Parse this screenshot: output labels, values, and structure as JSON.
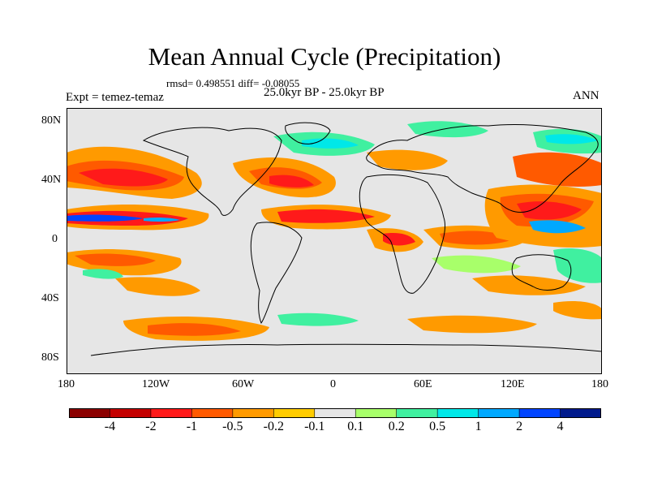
{
  "title": "Mean Annual Cycle (Precipitation)",
  "stats": "rmsd= 0.498551 diff= -0.08055",
  "period": "25.0kyr BP - 25.0kyr BP",
  "expt": "Expt = temez-temaz",
  "season": "ANN",
  "lat_labels": [
    "80N",
    "40N",
    "0",
    "40S",
    "80S"
  ],
  "lon_labels": [
    "180",
    "120W",
    "60W",
    "0",
    "60E",
    "120E",
    "180"
  ],
  "colorbar": {
    "colors": [
      "#8b0000",
      "#c40000",
      "#ff1a1a",
      "#ff5a00",
      "#ff9a00",
      "#ffcc00",
      "#e6e6e6",
      "#a8ff6a",
      "#40f0a0",
      "#00e8e8",
      "#00a8ff",
      "#0044ff",
      "#001a8c"
    ],
    "labels": [
      "-4",
      "-2",
      "-1",
      "-0.5",
      "-0.2",
      "-0.1",
      "0.1",
      "0.2",
      "0.5",
      "1",
      "2",
      "4"
    ]
  }
}
